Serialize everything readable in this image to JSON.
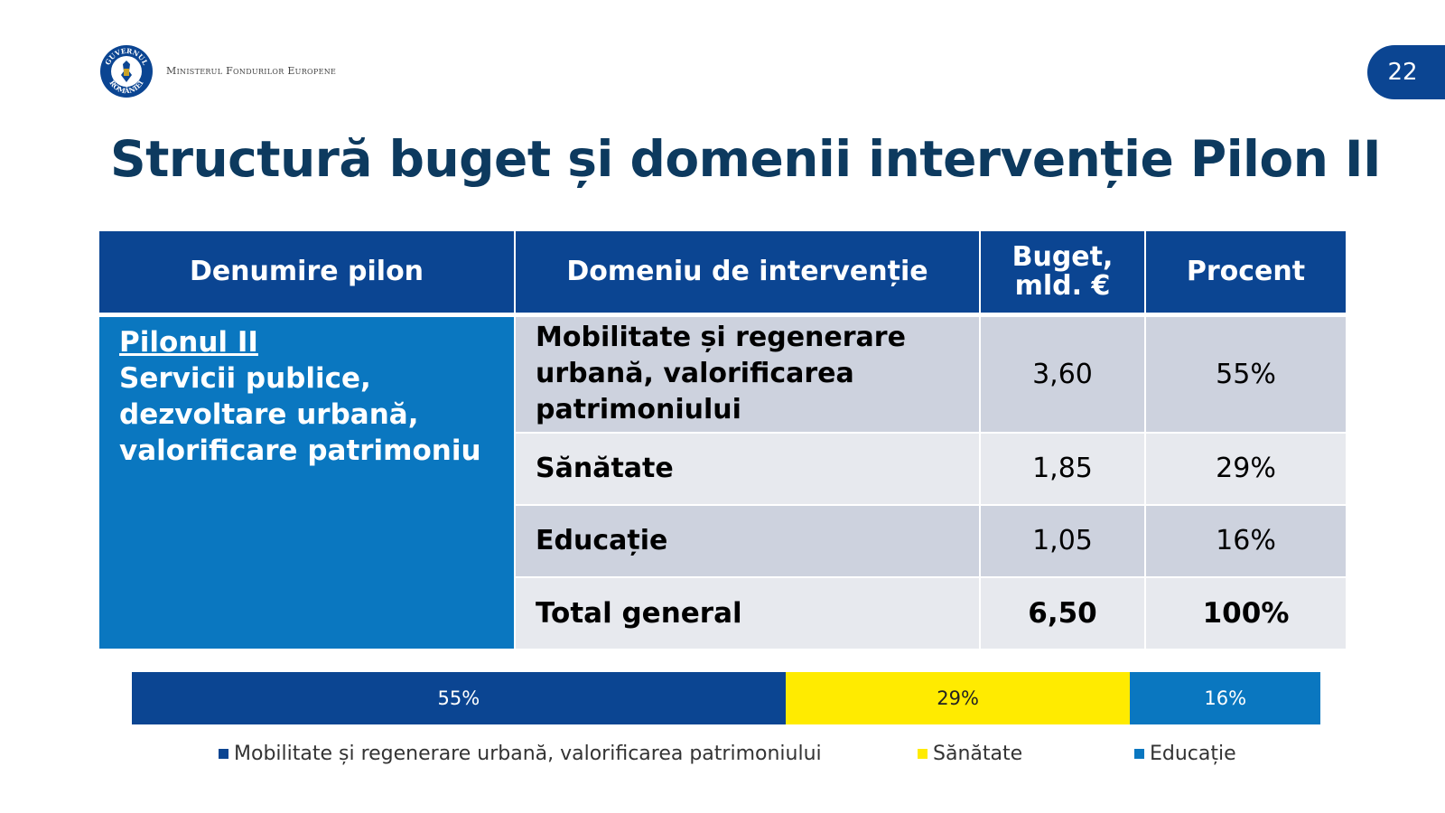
{
  "header": {
    "logo": {
      "icon": "government-seal-icon",
      "ring_text": "GUVERNUL ROMÂNIEI",
      "color": "#0b4592"
    },
    "ministry": "Ministerul Fondurilor Europene",
    "page_number": "22"
  },
  "title": "Structură buget și domenii intervenție Pilon II",
  "table": {
    "headers": [
      "Denumire pilon",
      "Domeniu de intervenție",
      "Buget, mld. €",
      "Procent"
    ],
    "pillar_name": "Pilonul II",
    "pillar_description": "Servicii publice, dezvoltare urbană, valorificare patrimoniu",
    "rows": [
      {
        "domain": "Mobilitate și regenerare urbană, valorificarea patrimoniului",
        "budget": "3,60",
        "percent": "55%"
      },
      {
        "domain": "Sănătate",
        "budget": "1,85",
        "percent": "29%"
      },
      {
        "domain": "Educație",
        "budget": "1,05",
        "percent": "16%"
      }
    ],
    "total": {
      "label": "Total general",
      "budget": "6,50",
      "percent": "100%"
    }
  },
  "chart_data": {
    "type": "bar",
    "orientation": "horizontal-stacked-100",
    "categories": [
      "Mobilitate și regenerare urbană, valorificarea patrimoniului",
      "Sănătate",
      "Educație"
    ],
    "values": [
      55,
      29,
      16
    ],
    "labels": [
      "55%",
      "29%",
      "16%"
    ],
    "colors": [
      "#0b4592",
      "#ffeb00",
      "#0a77c0"
    ],
    "legend_position": "bottom"
  }
}
